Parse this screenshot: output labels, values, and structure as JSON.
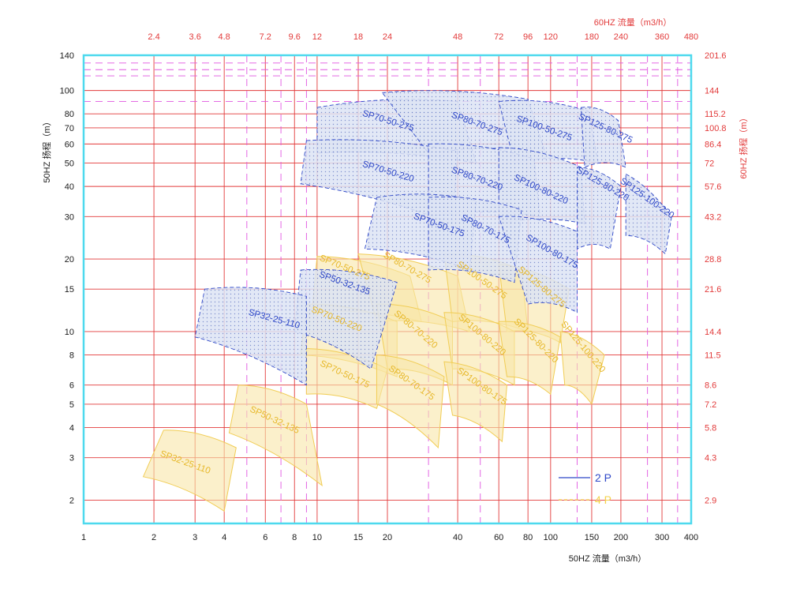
{
  "chart_data": {
    "type": "area",
    "title": "",
    "xlabel": "50HZ 流量（m3/h）",
    "ylabel": "50HZ 扬程（m）",
    "x2label": "60HZ 流量（m3/h）",
    "y2label": "60HZ 扬程（m）",
    "x_scale": "log",
    "y_scale": "log",
    "xlim": [
      1,
      400
    ],
    "ylim": [
      1.6,
      140
    ],
    "x_ticks": [
      1,
      2,
      3,
      4,
      6,
      8,
      10,
      15,
      20,
      40,
      60,
      80,
      100,
      150,
      200,
      300,
      400
    ],
    "x_tick_labels": [
      "1",
      "2",
      "3",
      "4",
      "6",
      "8",
      "10",
      "15",
      "20",
      "40",
      "60",
      "80",
      "100",
      "150",
      "200",
      "300",
      "400"
    ],
    "y_ticks": [
      2,
      3,
      4,
      5,
      6,
      8,
      10,
      15,
      20,
      30,
      40,
      50,
      60,
      70,
      80,
      100,
      140
    ],
    "y_tick_labels": [
      "2",
      "3",
      "4",
      "5",
      "6",
      "8",
      "10",
      "15",
      "20",
      "30",
      "40",
      "50",
      "60",
      "70",
      "80",
      "100",
      "140"
    ],
    "x2_ticks": [
      2,
      3,
      4,
      6,
      8,
      10,
      15,
      20,
      40,
      60,
      80,
      100,
      150,
      200,
      300,
      400
    ],
    "x2_tick_labels": [
      "2.4",
      "3.6",
      "4.8",
      "7.2",
      "9.6",
      "12",
      "18",
      "24",
      "48",
      "72",
      "96",
      "120",
      "180",
      "240",
      "360",
      "480"
    ],
    "y2_ticks": [
      2,
      3,
      4,
      5,
      6,
      8,
      10,
      15,
      20,
      30,
      40,
      50,
      60,
      70,
      80,
      100,
      140
    ],
    "y2_tick_labels": [
      "2.9",
      "4.3",
      "5.8",
      "7.2",
      "8.6",
      "11.5",
      "14.4",
      "21.6",
      "28.8",
      "43.2",
      "57.6",
      "72",
      "86.4",
      "100.8",
      "115.2",
      "144",
      "201.6"
    ],
    "dashed_v": [
      5,
      7,
      9,
      30,
      50,
      130,
      260,
      350
    ],
    "dashed_h": [
      90,
      115,
      122,
      130
    ],
    "grid": true,
    "legend_position": "bottom-right",
    "legend": [
      {
        "name": "2 P",
        "color": "#2f48c8"
      },
      {
        "name": "4 P",
        "color": "#f3d24a"
      }
    ],
    "series": [
      {
        "name": "SP70-50-275",
        "group": "2P",
        "label_x": 20,
        "label_y": 73,
        "angle": 17,
        "corners": [
          [
            10,
            85
          ],
          [
            40,
            90
          ],
          [
            48,
            50
          ],
          [
            10,
            55
          ]
        ]
      },
      {
        "name": "SP80-70-275",
        "group": "2P",
        "label_x": 48,
        "label_y": 71,
        "angle": 20,
        "corners": [
          [
            19,
            98
          ],
          [
            80,
            92
          ],
          [
            95,
            55
          ],
          [
            30,
            55
          ]
        ]
      },
      {
        "name": "SP100-50-275",
        "group": "2P",
        "label_x": 93,
        "label_y": 68,
        "angle": 20,
        "corners": [
          [
            60,
            90
          ],
          [
            145,
            82
          ],
          [
            160,
            50
          ],
          [
            70,
            50
          ]
        ]
      },
      {
        "name": "SP125-80-275",
        "group": "2P",
        "label_x": 170,
        "label_y": 68,
        "angle": 25,
        "corners": [
          [
            135,
            85
          ],
          [
            195,
            75
          ],
          [
            210,
            48
          ],
          [
            140,
            48
          ]
        ]
      },
      {
        "name": "SP70-50-220",
        "group": "2P",
        "label_x": 20,
        "label_y": 45,
        "angle": 17,
        "corners": [
          [
            9,
            62
          ],
          [
            40,
            56
          ],
          [
            38,
            28
          ],
          [
            8.5,
            41
          ]
        ]
      },
      {
        "name": "SP80-70-220",
        "group": "2P",
        "label_x": 48,
        "label_y": 42,
        "angle": 20,
        "corners": [
          [
            30,
            60
          ],
          [
            85,
            52
          ],
          [
            90,
            30
          ],
          [
            30,
            30
          ]
        ]
      },
      {
        "name": "SP100-80-220",
        "group": "2P",
        "label_x": 90,
        "label_y": 38,
        "angle": 25,
        "corners": [
          [
            60,
            58
          ],
          [
            135,
            48
          ],
          [
            140,
            28
          ],
          [
            60,
            28
          ]
        ]
      },
      {
        "name": "SP125-80-220",
        "group": "2P",
        "label_x": 165,
        "label_y": 40,
        "angle": 30,
        "corners": [
          [
            130,
            48
          ],
          [
            200,
            40
          ],
          [
            180,
            22
          ],
          [
            130,
            22
          ]
        ]
      },
      {
        "name": "SP125-100-220",
        "group": "2P",
        "label_x": 255,
        "label_y": 35,
        "angle": 35,
        "corners": [
          [
            210,
            45
          ],
          [
            330,
            30
          ],
          [
            310,
            21
          ],
          [
            210,
            25
          ]
        ]
      },
      {
        "name": "SP70-50-175",
        "group": "2P",
        "label_x": 33,
        "label_y": 27,
        "angle": 20,
        "corners": [
          [
            18,
            36
          ],
          [
            48,
            35
          ],
          [
            45,
            18
          ],
          [
            16,
            22
          ]
        ]
      },
      {
        "name": "SP80-70-175",
        "group": "2P",
        "label_x": 52,
        "label_y": 26,
        "angle": 27,
        "corners": [
          [
            30,
            36
          ],
          [
            75,
            32
          ],
          [
            70,
            16
          ],
          [
            30,
            18
          ]
        ]
      },
      {
        "name": "SP100-80-175",
        "group": "2P",
        "label_x": 100,
        "label_y": 21,
        "angle": 30,
        "corners": [
          [
            60,
            30
          ],
          [
            130,
            26
          ],
          [
            130,
            12
          ],
          [
            80,
            13
          ]
        ]
      },
      {
        "name": "SP50-32-135",
        "group": "2P",
        "label_x": 13,
        "label_y": 15.5,
        "angle": 20,
        "corners": [
          [
            8.5,
            18
          ],
          [
            22,
            16
          ],
          [
            17,
            7
          ],
          [
            8,
            10
          ]
        ]
      },
      {
        "name": "SP32-25-110",
        "group": "2P",
        "label_x": 6.5,
        "label_y": 11,
        "angle": 15,
        "corners": [
          [
            3.3,
            15
          ],
          [
            9,
            14
          ],
          [
            9,
            6
          ],
          [
            3,
            9.5
          ]
        ]
      },
      {
        "name": "SP70-50-275",
        "group": "4P",
        "label_x": 13,
        "label_y": 18,
        "angle": 22,
        "corners": [
          [
            10,
            20.5
          ],
          [
            25,
            17
          ],
          [
            28,
            11
          ],
          [
            9.5,
            12
          ]
        ]
      },
      {
        "name": "SP80-70-275",
        "group": "4P",
        "label_x": 24,
        "label_y": 18,
        "angle": 30,
        "corners": [
          [
            15,
            21
          ],
          [
            40,
            17
          ],
          [
            45,
            10
          ],
          [
            18,
            11
          ]
        ]
      },
      {
        "name": "SP100-50-275",
        "group": "4P",
        "label_x": 50,
        "label_y": 16,
        "angle": 35,
        "corners": [
          [
            35,
            21
          ],
          [
            75,
            18
          ],
          [
            80,
            10
          ],
          [
            38,
            11
          ]
        ]
      },
      {
        "name": "SP125-80-275",
        "group": "4P",
        "label_x": 90,
        "label_y": 15,
        "angle": 40,
        "corners": [
          [
            60,
            19
          ],
          [
            120,
            15
          ],
          [
            110,
            9
          ],
          [
            65,
            10
          ]
        ]
      },
      {
        "name": "SP70-50-220",
        "group": "4P",
        "label_x": 12,
        "label_y": 11,
        "angle": 22,
        "corners": [
          [
            9,
            13
          ],
          [
            22,
            11
          ],
          [
            22,
            6.5
          ],
          [
            8.5,
            8
          ]
        ]
      },
      {
        "name": "SP80-70-220",
        "group": "4P",
        "label_x": 26,
        "label_y": 10,
        "angle": 40,
        "corners": [
          [
            18,
            13
          ],
          [
            38,
            11
          ],
          [
            38,
            6
          ],
          [
            20,
            7
          ]
        ]
      },
      {
        "name": "SP100-80-220",
        "group": "4P",
        "label_x": 50,
        "label_y": 9.5,
        "angle": 40,
        "corners": [
          [
            35,
            12
          ],
          [
            70,
            10
          ],
          [
            70,
            6
          ],
          [
            38,
            7
          ]
        ]
      },
      {
        "name": "SP125-80-220",
        "group": "4P",
        "label_x": 85,
        "label_y": 9,
        "angle": 45,
        "corners": [
          [
            60,
            11
          ],
          [
            110,
            9.5
          ],
          [
            100,
            5.5
          ],
          [
            65,
            6.5
          ]
        ]
      },
      {
        "name": "SP125-100-220",
        "group": "4P",
        "label_x": 135,
        "label_y": 8.5,
        "angle": 50,
        "corners": [
          [
            110,
            10
          ],
          [
            170,
            8
          ],
          [
            150,
            5
          ],
          [
            115,
            6
          ]
        ]
      },
      {
        "name": "SP70-50-175",
        "group": "4P",
        "label_x": 13,
        "label_y": 6.5,
        "angle": 25,
        "corners": [
          [
            9,
            8.5
          ],
          [
            20,
            7
          ],
          [
            18,
            4.8
          ],
          [
            9,
            5.5
          ]
        ]
      },
      {
        "name": "SP80-70-175",
        "group": "4P",
        "label_x": 25,
        "label_y": 6,
        "angle": 35,
        "corners": [
          [
            18,
            8
          ],
          [
            35,
            6.5
          ],
          [
            33,
            3.3
          ],
          [
            18,
            5
          ]
        ]
      },
      {
        "name": "SP100-80-175",
        "group": "4P",
        "label_x": 50,
        "label_y": 5.8,
        "angle": 35,
        "corners": [
          [
            35,
            7.5
          ],
          [
            65,
            6
          ],
          [
            62,
            3.5
          ],
          [
            38,
            4.5
          ]
        ]
      },
      {
        "name": "SP50-32-135",
        "group": "4P",
        "label_x": 6.5,
        "label_y": 4.2,
        "angle": 25,
        "corners": [
          [
            4.6,
            6
          ],
          [
            9,
            5
          ],
          [
            10.5,
            2.3
          ],
          [
            4.2,
            3.8
          ]
        ]
      },
      {
        "name": "SP32-25-110",
        "group": "4P",
        "label_x": 2.7,
        "label_y": 2.8,
        "angle": 20,
        "corners": [
          [
            2.2,
            3.9
          ],
          [
            4.5,
            3.3
          ],
          [
            4,
            1.8
          ],
          [
            1.8,
            2.5
          ]
        ]
      }
    ]
  },
  "colors": {
    "border": "#4dd9ee",
    "grid": "#e23a3a",
    "grid_dashed": "#e055e0",
    "blue": "#2f48c8",
    "blue_fill": "#c9d4ee",
    "yellow_stroke": "#f1cd55",
    "yellow_fill": "#f9e6a8",
    "yellow_text": "#e7b82a",
    "axis_text": "#1a1a1a",
    "right_text": "#e23a3a"
  }
}
